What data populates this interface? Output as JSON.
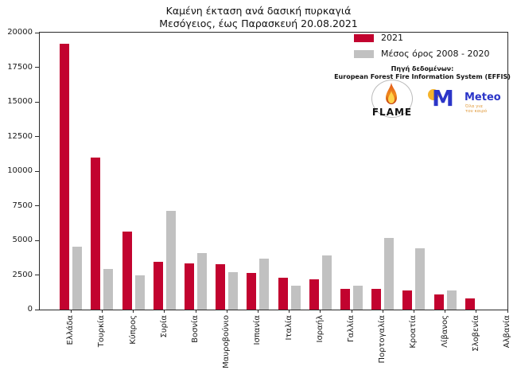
{
  "title": {
    "line1": "Καμένη έκταση ανά δασική πυρκαγιά",
    "line2": "Μεσόγειος, έως Παρασκευή 20.08.2021"
  },
  "legend": {
    "series1_label": "2021",
    "series2_label": "Μέσος όρος 2008 - 2020"
  },
  "source": {
    "line1": "Πηγή δεδομένων:",
    "line2": "European Forest Fire Information System (EFFIS)"
  },
  "logos": {
    "flame": {
      "label": "FLAME"
    },
    "meteo": {
      "name": "Meteo",
      "tagline_line1": "Όλα για",
      "tagline_line2": "τον καιρό"
    }
  },
  "colors": {
    "series_2021": "#c2032f",
    "series_avg": "#c1c1c1",
    "axis": "#2a2a2a",
    "meteo_blue": "#2b35c8",
    "meteo_yellow": "#f5b32a",
    "meteo_tagline": "#e09a3c"
  },
  "chart_data": {
    "type": "bar",
    "title": "Καμένη έκταση ανά δασική πυρκαγιά — Μεσόγειος, έως Παρασκευή 20.08.2021",
    "xlabel": "",
    "ylabel": "",
    "ylim": [
      0,
      20000
    ],
    "ytick_step": 2500,
    "grid": false,
    "legend_position": "upper right",
    "categories": [
      "Ελλάδα",
      "Τουρκία",
      "Κύπρος",
      "Συρία",
      "Βοσνία",
      "Μαυροβούνιο",
      "Ισπανία",
      "Ιταλία",
      "Ισραήλ",
      "Γαλλία",
      "Πορτογαλία",
      "Κροατία",
      "Λίβανος",
      "Σλοβενία",
      "Αλβανία"
    ],
    "series": [
      {
        "name": "2021",
        "color": "#c2032f",
        "values": [
          19200,
          11000,
          5650,
          3450,
          3350,
          3300,
          2650,
          2300,
          2200,
          1500,
          1500,
          1400,
          1100,
          800,
          0
        ]
      },
      {
        "name": "Μέσος όρος 2008 - 2020",
        "color": "#c1c1c1",
        "values": [
          4550,
          2950,
          2450,
          7150,
          4100,
          2700,
          3650,
          1750,
          3900,
          1700,
          5200,
          4400,
          1400,
          0,
          0
        ]
      }
    ]
  }
}
